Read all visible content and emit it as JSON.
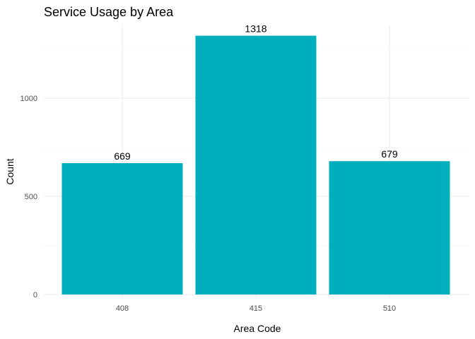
{
  "chart_data": {
    "type": "bar",
    "title": "Service Usage by Area",
    "xlabel": "Area Code",
    "ylabel": "Count",
    "categories": [
      "408",
      "415",
      "510"
    ],
    "values": [
      669,
      1318,
      679
    ],
    "data_labels": [
      "669",
      "1318",
      "679"
    ],
    "ylim": [
      0,
      1384
    ],
    "yticks": [
      0,
      500,
      1000
    ],
    "ytick_labels": [
      "0",
      "500",
      "1000"
    ],
    "grid": true,
    "bar_color": "#00AFBB"
  }
}
